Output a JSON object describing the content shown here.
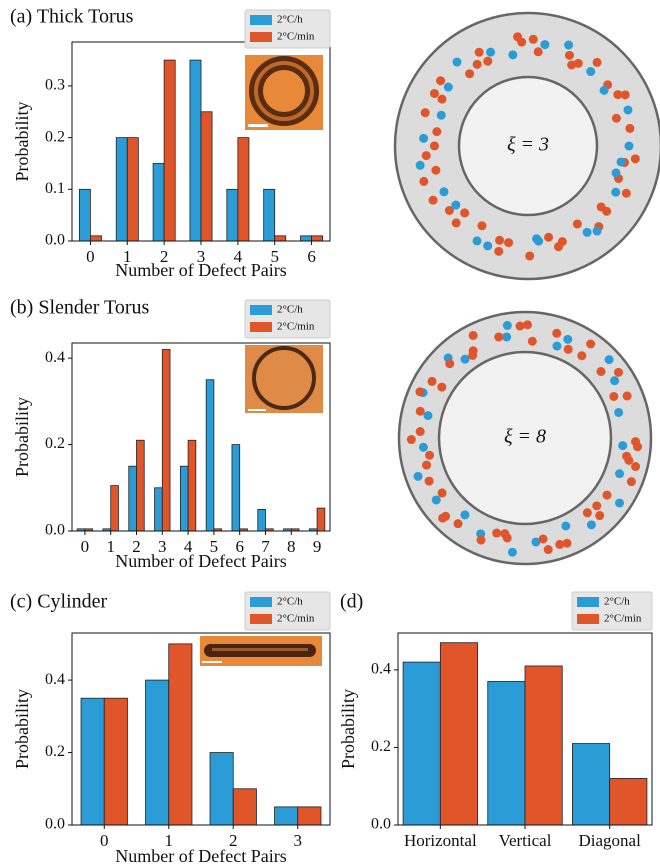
{
  "chart_data": [
    {
      "type": "bar",
      "title": "(a) Thick Torus",
      "xlabel": "Number of Defect Pairs",
      "ylabel": "Probability",
      "categories": [
        "0",
        "1",
        "2",
        "3",
        "4",
        "5",
        "6"
      ],
      "series": [
        {
          "name": "2°C/h",
          "color": "#2b9cd6",
          "values": [
            0.1,
            0.2,
            0.15,
            0.35,
            0.1,
            0.1,
            0.01
          ]
        },
        {
          "name": "2°C/min",
          "color": "#e0552a",
          "values": [
            0.01,
            0.2,
            0.35,
            0.25,
            0.2,
            0.01,
            0.01
          ]
        }
      ],
      "ylim": [
        0,
        0.385
      ],
      "yticks": [
        {
          "value": 0,
          "label": "0.0"
        },
        0.1,
        0.2,
        0.3
      ],
      "legend": "upper right",
      "annotation": "ξ = 3"
    },
    {
      "type": "bar",
      "title": "(b) Slender Torus",
      "xlabel": "Number of Defect Pairs",
      "ylabel": "Probability",
      "categories": [
        "0",
        "1",
        "2",
        "3",
        "4",
        "5",
        "6",
        "7",
        "8",
        "9"
      ],
      "series": [
        {
          "name": "2°C/h",
          "color": "#2b9cd6",
          "values": [
            0.005,
            0.005,
            0.15,
            0.1,
            0.15,
            0.35,
            0.2,
            0.05,
            0.005,
            0.005
          ]
        },
        {
          "name": "2°C/min",
          "color": "#e0552a",
          "values": [
            0.005,
            0.105,
            0.21,
            0.42,
            0.21,
            0.005,
            0.005,
            0.005,
            0.005,
            0.053
          ]
        }
      ],
      "ylim": [
        0,
        0.435
      ],
      "yticks": [
        {
          "value": 0,
          "label": "0.0"
        },
        0.2,
        0.4
      ],
      "legend": "upper right",
      "annotation": "ξ = 8"
    },
    {
      "type": "bar",
      "title": "(c) Cylinder",
      "xlabel": "Number of Defect Pairs",
      "ylabel": "Probability",
      "categories": [
        "0",
        "1",
        "2",
        "3"
      ],
      "series": [
        {
          "name": "2°C/h",
          "color": "#2b9cd6",
          "values": [
            0.35,
            0.4,
            0.2,
            0.05
          ]
        },
        {
          "name": "2°C/min",
          "color": "#e0552a",
          "values": [
            0.35,
            0.5,
            0.1,
            0.05
          ]
        }
      ],
      "ylim": [
        0,
        0.53
      ],
      "yticks": [
        {
          "value": 0,
          "label": "0.0"
        },
        0.2,
        0.4
      ],
      "legend": "upper right"
    },
    {
      "type": "bar",
      "title": "(d)",
      "ylabel": "Probability",
      "categories": [
        "Horizontal",
        "Vertical",
        "Diagonal"
      ],
      "series": [
        {
          "name": "2°C/h",
          "color": "#2b9cd6",
          "values": [
            0.42,
            0.37,
            0.21
          ]
        },
        {
          "name": "2°C/min",
          "color": "#e0552a",
          "values": [
            0.47,
            0.41,
            0.12
          ]
        }
      ],
      "ylim": [
        0,
        0.495
      ],
      "yticks": [
        {
          "value": 0,
          "label": "0.0"
        },
        0.2,
        0.4
      ],
      "legend": "upper right"
    }
  ]
}
